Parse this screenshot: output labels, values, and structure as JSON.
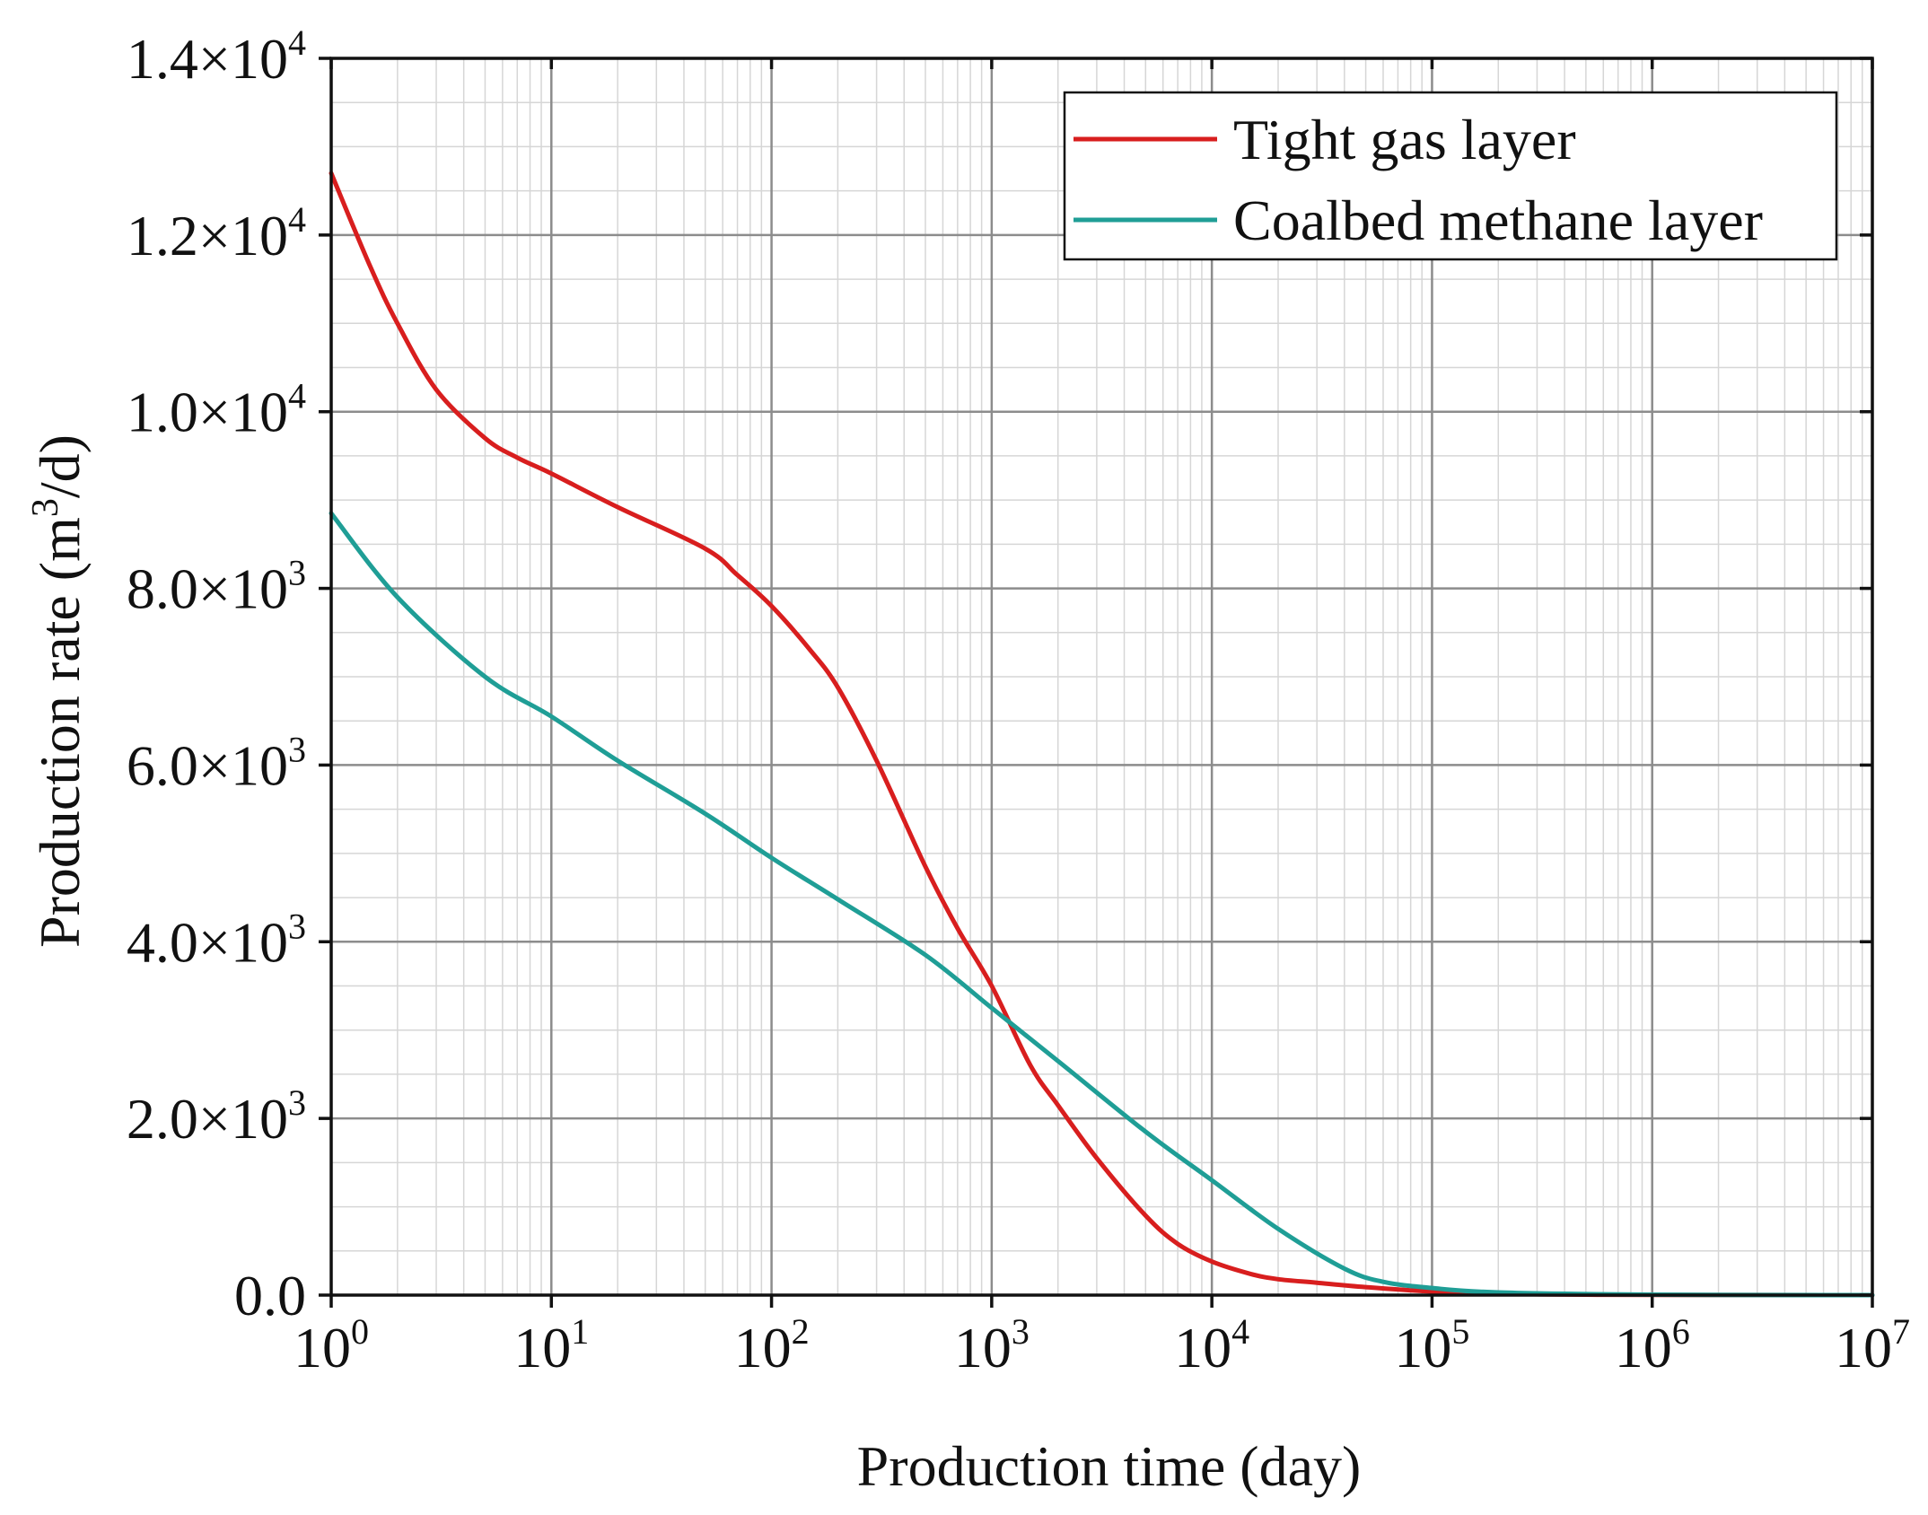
{
  "chart_data": {
    "type": "line",
    "title": "",
    "xlabel": "Production time (day)",
    "ylabel": "Production rate (m3/d)",
    "ylabel_parts": {
      "pre": "Production rate (m",
      "sup": "3",
      "post": "/d)"
    },
    "x_scale": "log",
    "xlim": [
      1,
      10000000
    ],
    "ylim": [
      0,
      14000
    ],
    "grid": true,
    "legend_position": "top-right",
    "x_ticks": [
      {
        "value": 1,
        "base": "10",
        "exp": "0"
      },
      {
        "value": 10,
        "base": "10",
        "exp": "1"
      },
      {
        "value": 100,
        "base": "10",
        "exp": "2"
      },
      {
        "value": 1000,
        "base": "10",
        "exp": "3"
      },
      {
        "value": 10000,
        "base": "10",
        "exp": "4"
      },
      {
        "value": 100000,
        "base": "10",
        "exp": "5"
      },
      {
        "value": 1000000,
        "base": "10",
        "exp": "6"
      },
      {
        "value": 10000000,
        "base": "10",
        "exp": "7"
      }
    ],
    "y_ticks": [
      {
        "value": 0,
        "mant": "0.0",
        "exp": ""
      },
      {
        "value": 2000,
        "mant": "2.0×10",
        "exp": "3"
      },
      {
        "value": 4000,
        "mant": "4.0×10",
        "exp": "3"
      },
      {
        "value": 6000,
        "mant": "6.0×10",
        "exp": "3"
      },
      {
        "value": 8000,
        "mant": "8.0×10",
        "exp": "3"
      },
      {
        "value": 10000,
        "mant": "1.0×10",
        "exp": "4"
      },
      {
        "value": 12000,
        "mant": "1.2×10",
        "exp": "4"
      },
      {
        "value": 14000,
        "mant": "1.4×10",
        "exp": "4"
      }
    ],
    "series": [
      {
        "name": "Tight gas layer",
        "color": "#d81e1e",
        "x": [
          1,
          1.5,
          2,
          3,
          5,
          7,
          10,
          20,
          50,
          70,
          100,
          150,
          200,
          300,
          500,
          700,
          1000,
          1500,
          2000,
          3000,
          5000,
          7000,
          10000,
          15000,
          20000,
          30000,
          50000,
          100000,
          200000,
          500000,
          1000000,
          10000000
        ],
        "y": [
          12700,
          11650,
          11000,
          10250,
          9700,
          9480,
          9300,
          8920,
          8450,
          8150,
          7800,
          7300,
          6880,
          6050,
          4850,
          4150,
          3500,
          2600,
          2150,
          1550,
          900,
          580,
          380,
          240,
          180,
          140,
          90,
          40,
          15,
          5,
          2,
          0
        ]
      },
      {
        "name": "Coalbed methane layer",
        "color": "#1f9e96",
        "x": [
          1,
          2,
          5,
          10,
          20,
          50,
          100,
          200,
          500,
          1000,
          2000,
          5000,
          10000,
          20000,
          40000,
          60000,
          100000,
          200000,
          1000000,
          10000000
        ],
        "y": [
          8850,
          7900,
          7000,
          6550,
          6050,
          5450,
          4950,
          4480,
          3850,
          3250,
          2650,
          1850,
          1300,
          750,
          300,
          150,
          80,
          30,
          5,
          0
        ]
      }
    ]
  }
}
